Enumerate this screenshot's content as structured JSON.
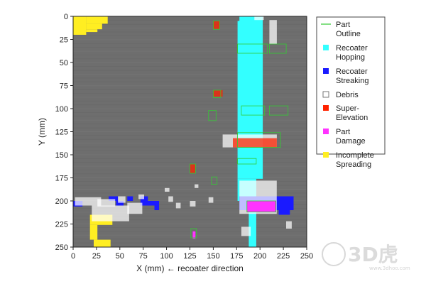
{
  "chart_data": {
    "type": "heatmap",
    "title": "",
    "xlabel": "X (mm) ← recoater direction",
    "ylabel": "Y (mm)",
    "xlim": [
      0,
      250
    ],
    "ylim": [
      0,
      250
    ],
    "y_inverted": true,
    "xticks": [
      0,
      25,
      50,
      75,
      100,
      125,
      150,
      175,
      200,
      225,
      250
    ],
    "yticks": [
      0,
      25,
      50,
      75,
      100,
      125,
      150,
      175,
      200,
      225,
      250
    ],
    "grid": false,
    "legend_placement": "right",
    "background_color": "#6e6e6e",
    "legend": [
      {
        "key": "part_outline",
        "label_lines": [
          "Part",
          "Outline"
        ],
        "color": "#33cc33"
      },
      {
        "key": "recoater_hopping",
        "label_lines": [
          "Recoater",
          "Hopping"
        ],
        "color": "#33ffff"
      },
      {
        "key": "recoater_streaking",
        "label_lines": [
          "Recoater",
          "Streaking"
        ],
        "color": "#1a1aff"
      },
      {
        "key": "debris",
        "label_lines": [
          "Debris"
        ],
        "color": "#ffffff"
      },
      {
        "key": "super_elevation",
        "label_lines": [
          "Super-",
          "Elevation"
        ],
        "color": "#ff2200"
      },
      {
        "key": "part_damage",
        "label_lines": [
          "Part",
          "Damage"
        ],
        "color": "#ff33ff"
      },
      {
        "key": "incomplete_spreading",
        "label_lines": [
          "Incomplete",
          "Spreading"
        ],
        "color": "#ffee22"
      }
    ],
    "regions": {
      "recoater_hopping": [
        [
          178,
          0,
          203,
          5
        ],
        [
          176,
          5,
          203,
          176
        ],
        [
          176,
          176,
          196,
          200
        ],
        [
          188,
          200,
          196,
          250
        ]
      ],
      "incomplete_spreading": [
        [
          0,
          0,
          14,
          20
        ],
        [
          14,
          0,
          37,
          8
        ],
        [
          14,
          8,
          31,
          14
        ],
        [
          14,
          14,
          26,
          17
        ],
        [
          18,
          215,
          42,
          226
        ],
        [
          18,
          226,
          26,
          242
        ],
        [
          22,
          242,
          40,
          250
        ]
      ],
      "recoater_streaking": [
        [
          38,
          195,
          48,
          200
        ],
        [
          46,
          200,
          54,
          205
        ],
        [
          58,
          195,
          64,
          200
        ],
        [
          72,
          200,
          92,
          205
        ],
        [
          72,
          195,
          80,
          200
        ],
        [
          87,
          205,
          92,
          210
        ],
        [
          0,
          200,
          10,
          206
        ],
        [
          178,
          195,
          236,
          210
        ],
        [
          220,
          210,
          232,
          215
        ]
      ],
      "debris": [
        [
          194,
          0,
          204,
          4
        ],
        [
          210,
          4,
          218,
          30
        ],
        [
          160,
          128,
          218,
          142
        ],
        [
          2,
          196,
          30,
          205
        ],
        [
          26,
          198,
          45,
          206
        ],
        [
          48,
          195,
          56,
          202
        ],
        [
          70,
          193,
          76,
          198
        ],
        [
          98,
          186,
          103,
          190
        ],
        [
          102,
          195,
          107,
          201
        ],
        [
          110,
          202,
          115,
          208
        ],
        [
          125,
          200,
          131,
          206
        ],
        [
          145,
          196,
          150,
          202
        ],
        [
          130,
          182,
          134,
          186
        ],
        [
          20,
          205,
          60,
          222
        ],
        [
          58,
          202,
          74,
          214
        ],
        [
          178,
          178,
          218,
          214
        ],
        [
          180,
          228,
          190,
          238
        ],
        [
          228,
          222,
          234,
          230
        ]
      ],
      "super_elevation": [
        [
          150,
          5,
          157,
          14
        ],
        [
          150,
          80,
          160,
          87
        ],
        [
          125,
          160,
          131,
          170
        ],
        [
          171,
          132,
          218,
          142
        ]
      ],
      "part_damage": [
        [
          186,
          200,
          217,
          212
        ],
        [
          128,
          233,
          131,
          241
        ]
      ],
      "part_outline": [
        [
          150,
          5,
          157,
          14
        ],
        [
          150,
          80,
          158,
          88
        ],
        [
          125,
          160,
          131,
          170
        ],
        [
          148,
          174,
          154,
          182
        ],
        [
          145,
          102,
          153,
          113
        ],
        [
          180,
          97,
          205,
          107
        ],
        [
          210,
          97,
          230,
          107
        ],
        [
          176,
          30,
          208,
          40
        ],
        [
          210,
          30,
          228,
          40
        ],
        [
          176,
          126,
          222,
          142
        ],
        [
          186,
          200,
          217,
          212
        ],
        [
          126,
          230,
          132,
          240
        ],
        [
          176,
          154,
          196,
          160
        ]
      ]
    }
  },
  "watermark": {
    "brand": "3D虎",
    "url": "www.3dhoo.com"
  }
}
